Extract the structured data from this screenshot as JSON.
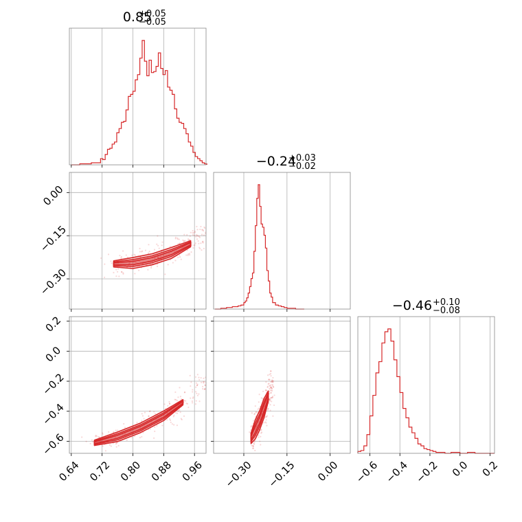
{
  "chart_data": {
    "type": "scatter",
    "grid": true,
    "colors": {
      "series": "#d62728",
      "frame": "#888888",
      "grid": "#b0b0b0"
    },
    "parameters": [
      {
        "median": 0.85,
        "plus": 0.05,
        "minus": 0.05,
        "title_main": "0.85",
        "title_plus": "+0.05",
        "title_minus": "−0.05",
        "range": [
          0.635,
          0.99
        ]
      },
      {
        "median": -0.24,
        "plus": 0.03,
        "minus": 0.02,
        "title_main": "−0.24",
        "title_plus": "+0.03",
        "title_minus": "−0.02",
        "range": [
          -0.405,
          0.07
        ]
      },
      {
        "median": -0.46,
        "plus": 0.1,
        "minus": 0.08,
        "title_main": "−0.46",
        "title_plus": "+0.10",
        "title_minus": "−0.08",
        "range": [
          -0.68,
          0.23
        ]
      }
    ],
    "tick_values": [
      [
        0.64,
        0.72,
        0.8,
        0.88,
        0.96
      ],
      [
        -0.3,
        -0.15,
        0.0
      ],
      [
        -0.6,
        -0.4,
        -0.2,
        0.0,
        0.2
      ]
    ],
    "tick_labels": [
      [
        "0.64",
        "0.72",
        "0.80",
        "0.88",
        "0.96"
      ],
      [
        "−0.30",
        "−0.15",
        "0.00"
      ],
      [
        "−0.6",
        "−0.4",
        "−0.2",
        "0.0",
        "0.2"
      ]
    ],
    "histograms": [
      {
        "edges": [
          0.64,
          0.662,
          0.692,
          0.716,
          0.722,
          0.728,
          0.734,
          0.74,
          0.746,
          0.752,
          0.758,
          0.764,
          0.77,
          0.776,
          0.782,
          0.788,
          0.794,
          0.8,
          0.806,
          0.812,
          0.818,
          0.824,
          0.83,
          0.836,
          0.842,
          0.848,
          0.854,
          0.86,
          0.866,
          0.872,
          0.878,
          0.884,
          0.89,
          0.896,
          0.902,
          0.908,
          0.914,
          0.92,
          0.926,
          0.932,
          0.938,
          0.944,
          0.95,
          0.956,
          0.962,
          0.968,
          0.974,
          0.98,
          0.986,
          0.992
        ],
        "counts": [
          0,
          1,
          2,
          6,
          5,
          10,
          15,
          16,
          20,
          22,
          31,
          35,
          41,
          42,
          53,
          66,
          68,
          71,
          82,
          87,
          103,
          120,
          100,
          86,
          101,
          89,
          90,
          95,
          108,
          93,
          87,
          91,
          75,
          72,
          68,
          54,
          45,
          41,
          40,
          35,
          30,
          22,
          18,
          12,
          8,
          6,
          4,
          2,
          1
        ]
      },
      {
        "edges": [
          -0.4,
          -0.38,
          -0.36,
          -0.34,
          -0.32,
          -0.31,
          -0.3,
          -0.295,
          -0.29,
          -0.285,
          -0.28,
          -0.275,
          -0.27,
          -0.265,
          -0.26,
          -0.255,
          -0.25,
          -0.245,
          -0.24,
          -0.235,
          -0.23,
          -0.225,
          -0.22,
          -0.215,
          -0.21,
          -0.205,
          -0.2,
          -0.19,
          -0.18,
          -0.17,
          -0.16,
          -0.15,
          -0.12,
          -0.09
        ],
        "counts": [
          0,
          1,
          2,
          3,
          4,
          5,
          8,
          10,
          14,
          20,
          28,
          38,
          45,
          72,
          104,
          138,
          155,
          128,
          106,
          102,
          92,
          76,
          48,
          35,
          20,
          15,
          8,
          5,
          4,
          3,
          2,
          1,
          0
        ]
      },
      {
        "edges": [
          -0.68,
          -0.66,
          -0.64,
          -0.62,
          -0.6,
          -0.58,
          -0.56,
          -0.54,
          -0.52,
          -0.5,
          -0.48,
          -0.46,
          -0.44,
          -0.42,
          -0.4,
          -0.38,
          -0.36,
          -0.34,
          -0.32,
          -0.3,
          -0.28,
          -0.26,
          -0.24,
          -0.22,
          -0.2,
          -0.18,
          -0.16,
          -0.14,
          -0.12,
          -0.1,
          -0.08,
          -0.06,
          0.0,
          0.05,
          0.1,
          0.15,
          0.2,
          0.23
        ],
        "counts": [
          2,
          3,
          8,
          20,
          40,
          62,
          86,
          98,
          118,
          130,
          133,
          120,
          100,
          82,
          65,
          48,
          38,
          28,
          22,
          16,
          10,
          8,
          5,
          4,
          3,
          2,
          1,
          1,
          1,
          0,
          0,
          1,
          0,
          1,
          0,
          0,
          0
        ]
      }
    ],
    "scatter_panels": [
      {
        "x_param": 0,
        "y_param": 1,
        "ridge": [
          [
            0.75,
            -0.248
          ],
          [
            0.8,
            -0.245
          ],
          [
            0.85,
            -0.232
          ],
          [
            0.9,
            -0.21
          ],
          [
            0.95,
            -0.178
          ],
          [
            0.99,
            -0.14
          ]
        ],
        "spread": [
          0.04,
          0.012
        ]
      },
      {
        "x_param": 0,
        "y_param": 2,
        "ridge": [
          [
            0.7,
            -0.61
          ],
          [
            0.76,
            -0.57
          ],
          [
            0.82,
            -0.51
          ],
          [
            0.88,
            -0.43
          ],
          [
            0.93,
            -0.34
          ],
          [
            0.99,
            -0.17
          ]
        ],
        "spread": [
          0.04,
          0.02
        ]
      },
      {
        "x_param": 1,
        "y_param": 2,
        "ridge": [
          [
            -0.275,
            -0.58
          ],
          [
            -0.26,
            -0.52
          ],
          [
            -0.245,
            -0.46
          ],
          [
            -0.23,
            -0.38
          ],
          [
            -0.215,
            -0.3
          ],
          [
            -0.2,
            -0.22
          ]
        ],
        "spread": [
          0.008,
          0.04
        ]
      }
    ]
  }
}
